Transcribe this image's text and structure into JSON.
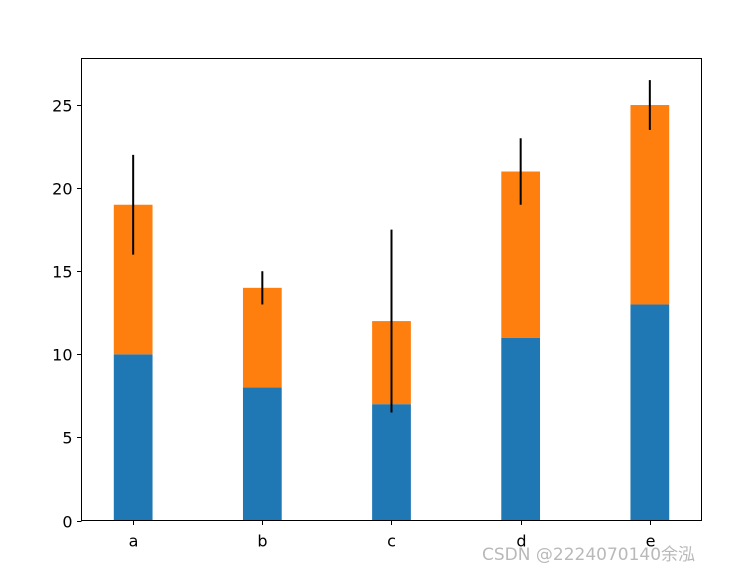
{
  "chart_data": {
    "type": "bar",
    "stacked": true,
    "categories": [
      "a",
      "b",
      "c",
      "d",
      "e"
    ],
    "series": [
      {
        "values": [
          10,
          8,
          7,
          11,
          13
        ],
        "color": "#1f77b4"
      },
      {
        "values": [
          9,
          6,
          5,
          10,
          12
        ],
        "color": "#ff7f0e"
      }
    ],
    "error_bars": {
      "center": [
        19,
        14,
        12,
        21,
        25
      ],
      "minus": [
        3,
        1,
        5.5,
        2,
        1.5
      ],
      "plus": [
        3,
        1,
        5.5,
        2,
        1.5
      ],
      "color": "#000000"
    },
    "ylim": [
      0,
      27.8
    ],
    "yticks": [
      0,
      5,
      10,
      15,
      20,
      25
    ],
    "title": "",
    "xlabel": "",
    "ylabel": "",
    "grid": false,
    "legend": "none"
  },
  "watermark": "CSDN @2224070140余泓"
}
